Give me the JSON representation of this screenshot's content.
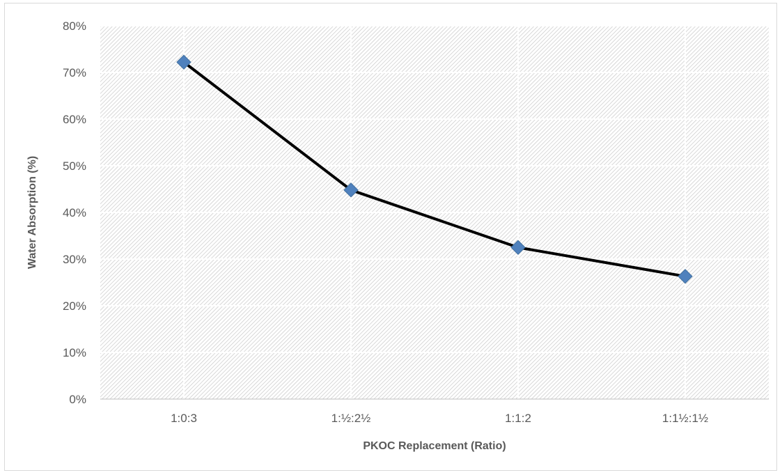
{
  "chart_data": {
    "type": "line",
    "title": "",
    "xlabel": "PKOC Replacement (Ratio)",
    "ylabel": "Water Absorption (%)",
    "categories": [
      "1:0:3",
      "1:½:2½",
      "1:1:2",
      "1:1½:1½"
    ],
    "series": [
      {
        "values": [
          72.2,
          44.8,
          32.5,
          26.3
        ]
      }
    ],
    "ylim": [
      0,
      80
    ],
    "yticks": [
      0,
      10,
      20,
      30,
      40,
      50,
      60,
      70,
      80
    ],
    "ytick_format": "percent",
    "grid": true,
    "legend": "none",
    "colors": {
      "line": "#000000",
      "marker": "#4f81bd",
      "marker_edge": "#41709f",
      "hatch": "#c8c8c8",
      "axis_text": "#595959",
      "title_text": "#595959"
    }
  }
}
